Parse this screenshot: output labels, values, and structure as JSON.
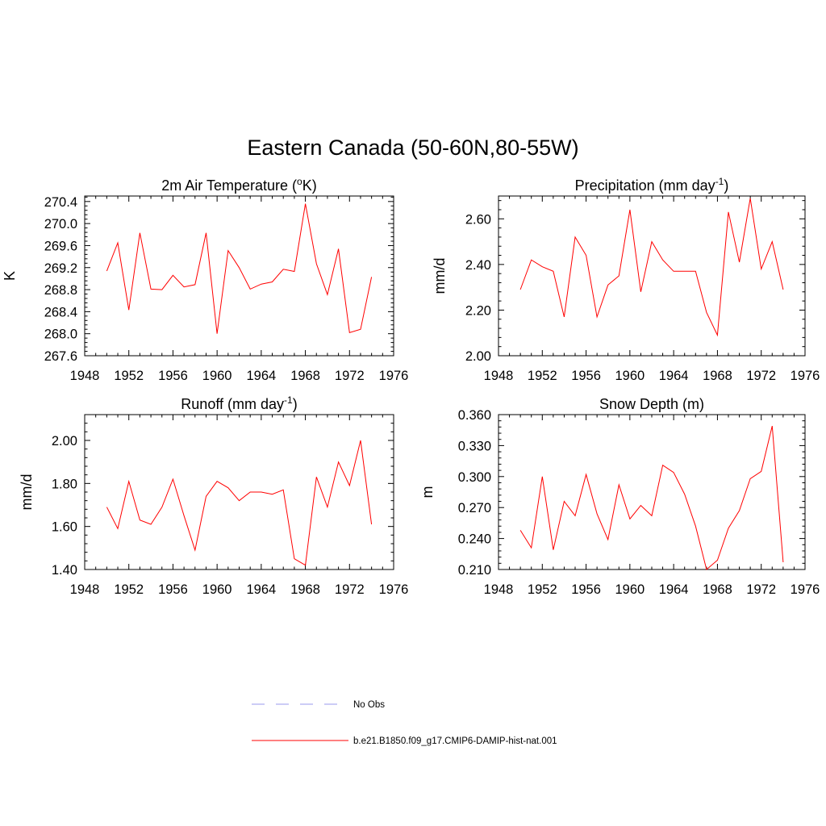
{
  "figure": {
    "title": "Eastern Canada (50-60N,80-55W)"
  },
  "colors": {
    "series": "#ff0000",
    "obs": "#9999ee",
    "axis": "#000000"
  },
  "legend": [
    {
      "label": "No Obs",
      "style": "dashed",
      "color": "#9999ee"
    },
    {
      "label": "b.e21.B1850.f09_g17.CMIP6-DAMIP-hist-nat.001",
      "style": "solid",
      "color": "#ff0000"
    }
  ],
  "chart_data": [
    {
      "type": "line",
      "title": "2m Air Temperature (°K)",
      "title_parts": {
        "pre": "2m Air Temperature (",
        "sup": "o",
        "post": "K)"
      },
      "ylabel": "K",
      "xlim": [
        1948,
        1976
      ],
      "ylim": [
        267.6,
        270.5
      ],
      "xticks": [
        "1948",
        "1952",
        "1956",
        "1960",
        "1964",
        "1968",
        "1972",
        "1976"
      ],
      "yticks": [
        "267.6",
        "268.0",
        "268.4",
        "268.8",
        "269.2",
        "269.6",
        "270.0",
        "270.4"
      ],
      "grid": false,
      "x": [
        1950,
        1951,
        1952,
        1953,
        1954,
        1955,
        1956,
        1957,
        1958,
        1959,
        1960,
        1961,
        1962,
        1963,
        1964,
        1965,
        1966,
        1967,
        1968,
        1969,
        1970,
        1971,
        1972,
        1973,
        1974
      ],
      "values": [
        269.14,
        269.65,
        268.43,
        269.83,
        268.81,
        268.8,
        269.06,
        268.85,
        268.89,
        269.83,
        268.0,
        269.51,
        269.2,
        268.81,
        268.9,
        268.94,
        269.17,
        269.13,
        270.36,
        269.27,
        268.71,
        269.54,
        268.02,
        268.08,
        269.03
      ]
    },
    {
      "type": "line",
      "title": "Precipitation (mm day-1)",
      "title_parts": {
        "pre": "Precipitation (mm day",
        "sup": "-1",
        "post": ")"
      },
      "ylabel": "mm/d",
      "xlim": [
        1948,
        1976
      ],
      "ylim": [
        2.0,
        2.7
      ],
      "xticks": [
        "1948",
        "1952",
        "1956",
        "1960",
        "1964",
        "1968",
        "1972",
        "1976"
      ],
      "yticks": [
        "2.00",
        "2.20",
        "2.40",
        "2.60"
      ],
      "grid": false,
      "x": [
        1950,
        1951,
        1952,
        1953,
        1954,
        1955,
        1956,
        1957,
        1958,
        1959,
        1960,
        1961,
        1962,
        1963,
        1964,
        1965,
        1966,
        1967,
        1968,
        1969,
        1970,
        1971,
        1972,
        1973,
        1974
      ],
      "values": [
        2.29,
        2.42,
        2.39,
        2.37,
        2.17,
        2.52,
        2.44,
        2.17,
        2.31,
        2.35,
        2.64,
        2.28,
        2.5,
        2.42,
        2.37,
        2.37,
        2.37,
        2.19,
        2.09,
        2.63,
        2.41,
        2.69,
        2.38,
        2.5,
        2.29
      ]
    },
    {
      "type": "line",
      "title": "Runoff (mm day-1)",
      "title_parts": {
        "pre": "Runoff (mm day",
        "sup": "-1",
        "post": ")"
      },
      "ylabel": "mm/d",
      "xlim": [
        1948,
        1976
      ],
      "ylim": [
        1.4,
        2.12
      ],
      "xticks": [
        "1948",
        "1952",
        "1956",
        "1960",
        "1964",
        "1968",
        "1972",
        "1976"
      ],
      "yticks": [
        "1.40",
        "1.60",
        "1.80",
        "2.00"
      ],
      "grid": false,
      "x": [
        1950,
        1951,
        1952,
        1953,
        1954,
        1955,
        1956,
        1957,
        1958,
        1959,
        1960,
        1961,
        1962,
        1963,
        1964,
        1965,
        1966,
        1967,
        1968,
        1969,
        1970,
        1971,
        1972,
        1973,
        1974
      ],
      "values": [
        1.69,
        1.59,
        1.81,
        1.63,
        1.61,
        1.69,
        1.82,
        1.65,
        1.49,
        1.74,
        1.81,
        1.78,
        1.72,
        1.76,
        1.76,
        1.75,
        1.77,
        1.45,
        1.42,
        1.83,
        1.69,
        1.9,
        1.79,
        2.0,
        1.61
      ]
    },
    {
      "type": "line",
      "title": "Snow Depth (m)",
      "title_parts": {
        "pre": "Snow Depth (m)",
        "sup": "",
        "post": ""
      },
      "ylabel": "m",
      "xlim": [
        1948,
        1976
      ],
      "ylim": [
        0.21,
        0.36
      ],
      "xticks": [
        "1948",
        "1952",
        "1956",
        "1960",
        "1964",
        "1968",
        "1972",
        "1976"
      ],
      "yticks": [
        "0.210",
        "0.240",
        "0.270",
        "0.300",
        "0.330",
        "0.360"
      ],
      "grid": false,
      "x": [
        1950,
        1951,
        1952,
        1953,
        1954,
        1955,
        1956,
        1957,
        1958,
        1959,
        1960,
        1961,
        1962,
        1963,
        1964,
        1965,
        1966,
        1967,
        1968,
        1969,
        1970,
        1971,
        1972,
        1973,
        1974
      ],
      "values": [
        0.248,
        0.231,
        0.3,
        0.229,
        0.276,
        0.262,
        0.302,
        0.264,
        0.239,
        0.292,
        0.259,
        0.272,
        0.262,
        0.311,
        0.304,
        0.283,
        0.252,
        0.21,
        0.219,
        0.25,
        0.267,
        0.298,
        0.305,
        0.349,
        0.217
      ]
    }
  ]
}
